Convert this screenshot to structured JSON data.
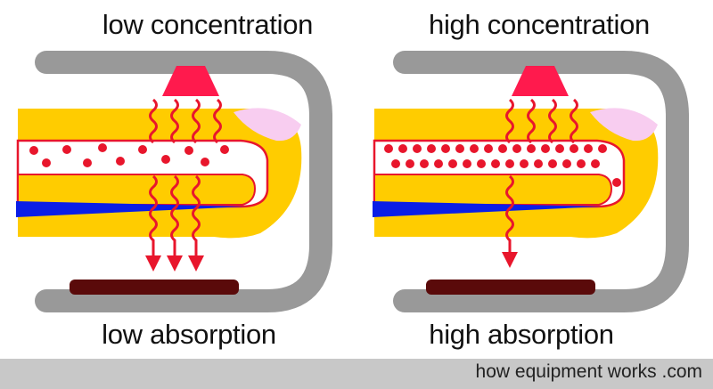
{
  "panels": [
    {
      "top_label": "low concentration",
      "bottom_label": "low absorption"
    },
    {
      "top_label": "high concentration",
      "bottom_label": "high absorption"
    }
  ],
  "footer": {
    "credit": "how equipment works .com"
  },
  "colors": {
    "clip": "#999999",
    "emitter": "#ff1a4d",
    "finger": "#ffcc00",
    "nail": "#f8cdf0",
    "vessel_outline": "#e8162c",
    "blood_cell": "#e8162c",
    "cell_dot": "#7a2ab8",
    "vein": "#0b1ee6",
    "detector": "#5a0a0a",
    "footer_bg": "#c8c8c8"
  },
  "icons": [
    "light-emitter-icon",
    "photodetector-icon",
    "light-wave-icon",
    "red-blood-cell-icon"
  ]
}
